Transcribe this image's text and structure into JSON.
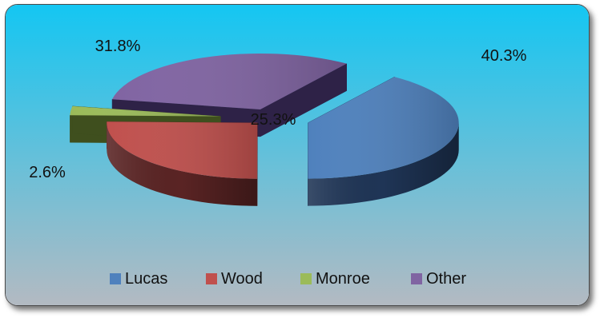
{
  "chart_data": {
    "type": "pie",
    "style": "3d-exploded",
    "categories": [
      "Lucas",
      "Wood",
      "Monroe",
      "Other"
    ],
    "values": [
      40.3,
      25.3,
      2.6,
      31.8
    ],
    "labels": [
      "40.3%",
      "25.3%",
      "2.6%",
      "31.8%"
    ],
    "colors": [
      "#4F81BD",
      "#C0504D",
      "#9BBB59",
      "#8064A2"
    ],
    "side_colors": [
      "#1F3556",
      "#5A2424",
      "#3F4F1E",
      "#2E2247"
    ],
    "legend": {
      "placement": "bottom",
      "items": [
        "Lucas",
        "Wood",
        "Monroe",
        "Other"
      ]
    },
    "background": {
      "gradient_top": "#14C6F2",
      "gradient_bottom": "#B3BAC2"
    }
  }
}
